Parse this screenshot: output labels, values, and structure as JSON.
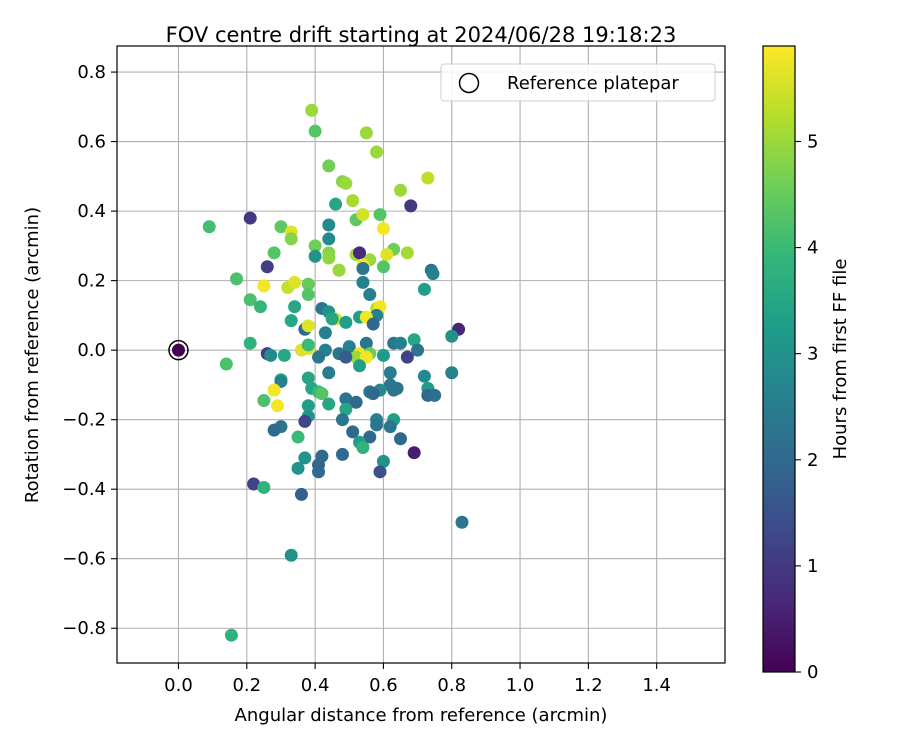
{
  "chart_data": {
    "type": "scatter",
    "title": "FOV centre drift starting at 2024/06/28 19:18:23",
    "xlabel": "Angular distance from reference (arcmin)",
    "ylabel": "Rotation from reference (arcmin)",
    "xlim": [
      -0.18,
      1.6
    ],
    "ylim": [
      -0.9,
      0.875
    ],
    "xticks": [
      0.0,
      0.2,
      0.4,
      0.6,
      0.8,
      1.0,
      1.2,
      1.4
    ],
    "xtick_labels": [
      "0.0",
      "0.2",
      "0.4",
      "0.6",
      "0.8",
      "1.0",
      "1.2",
      "1.4"
    ],
    "yticks": [
      0.8,
      0.6,
      0.4,
      0.2,
      0.0,
      -0.2,
      -0.4,
      -0.6,
      -0.8
    ],
    "ytick_labels": [
      "0.8",
      "0.6",
      "0.4",
      "0.2",
      "0.0",
      "−0.2",
      "−0.4",
      "−0.6",
      "−0.8"
    ],
    "grid": true,
    "legend": {
      "label": "Reference platepar",
      "placement": "top-right"
    },
    "reference_point": {
      "x": 0.0,
      "y": 0.0,
      "c": 0.0
    },
    "colorbar": {
      "label": "Hours from first FF file",
      "range": [
        0,
        5.9
      ],
      "ticks": [
        0,
        1,
        2,
        3,
        4,
        5
      ],
      "tick_labels": [
        "0",
        "1",
        "2",
        "3",
        "4",
        "5"
      ],
      "colormap": "viridis"
    },
    "colors": {
      "grid": "#b0b0b0",
      "viridis": [
        "#440154",
        "#482878",
        "#3e4989",
        "#31688e",
        "#26828e",
        "#1f9e89",
        "#35b779",
        "#6ece58",
        "#b5de2b",
        "#fde725"
      ]
    },
    "points": [
      {
        "x": 0.39,
        "y": 0.69,
        "c": 5.0
      },
      {
        "x": 0.4,
        "y": 0.63,
        "c": 4.3
      },
      {
        "x": 0.55,
        "y": 0.625,
        "c": 5.0
      },
      {
        "x": 0.58,
        "y": 0.57,
        "c": 5.0
      },
      {
        "x": 0.44,
        "y": 0.53,
        "c": 4.6
      },
      {
        "x": 0.73,
        "y": 0.495,
        "c": 5.3
      },
      {
        "x": 0.48,
        "y": 0.485,
        "c": 4.8
      },
      {
        "x": 0.49,
        "y": 0.48,
        "c": 5.0
      },
      {
        "x": 0.65,
        "y": 0.46,
        "c": 5.0
      },
      {
        "x": 0.51,
        "y": 0.43,
        "c": 5.1
      },
      {
        "x": 0.46,
        "y": 0.42,
        "c": 3.5
      },
      {
        "x": 0.68,
        "y": 0.415,
        "c": 1.0
      },
      {
        "x": 0.21,
        "y": 0.38,
        "c": 1.0
      },
      {
        "x": 0.52,
        "y": 0.375,
        "c": 4.4
      },
      {
        "x": 0.54,
        "y": 0.39,
        "c": 5.5
      },
      {
        "x": 0.59,
        "y": 0.39,
        "c": 4.3
      },
      {
        "x": 0.09,
        "y": 0.355,
        "c": 4.1
      },
      {
        "x": 0.3,
        "y": 0.355,
        "c": 4.4
      },
      {
        "x": 0.44,
        "y": 0.36,
        "c": 2.8
      },
      {
        "x": 0.33,
        "y": 0.34,
        "c": 5.6
      },
      {
        "x": 0.33,
        "y": 0.32,
        "c": 4.8
      },
      {
        "x": 0.6,
        "y": 0.35,
        "c": 5.8
      },
      {
        "x": 0.44,
        "y": 0.32,
        "c": 2.8
      },
      {
        "x": 0.4,
        "y": 0.3,
        "c": 4.6
      },
      {
        "x": 0.63,
        "y": 0.29,
        "c": 4.6
      },
      {
        "x": 0.28,
        "y": 0.28,
        "c": 4.3
      },
      {
        "x": 0.44,
        "y": 0.28,
        "c": 4.8
      },
      {
        "x": 0.4,
        "y": 0.27,
        "c": 3.0
      },
      {
        "x": 0.52,
        "y": 0.275,
        "c": 5.0
      },
      {
        "x": 0.56,
        "y": 0.26,
        "c": 5.0
      },
      {
        "x": 0.61,
        "y": 0.275,
        "c": 5.6
      },
      {
        "x": 0.67,
        "y": 0.28,
        "c": 5.1
      },
      {
        "x": 0.53,
        "y": 0.28,
        "c": 0.7
      },
      {
        "x": 0.54,
        "y": 0.245,
        "c": 5.8
      },
      {
        "x": 0.44,
        "y": 0.265,
        "c": 4.9
      },
      {
        "x": 0.26,
        "y": 0.24,
        "c": 1.1
      },
      {
        "x": 0.54,
        "y": 0.235,
        "c": 2.3
      },
      {
        "x": 0.6,
        "y": 0.24,
        "c": 4.3
      },
      {
        "x": 0.47,
        "y": 0.23,
        "c": 4.3
      },
      {
        "x": 0.47,
        "y": 0.23,
        "c": 5.0
      },
      {
        "x": 0.74,
        "y": 0.23,
        "c": 2.3
      },
      {
        "x": 0.745,
        "y": 0.22,
        "c": 2.6
      },
      {
        "x": 0.17,
        "y": 0.205,
        "c": 4.2
      },
      {
        "x": 0.25,
        "y": 0.185,
        "c": 5.8
      },
      {
        "x": 0.32,
        "y": 0.18,
        "c": 5.4
      },
      {
        "x": 0.34,
        "y": 0.195,
        "c": 5.6
      },
      {
        "x": 0.38,
        "y": 0.19,
        "c": 4.5
      },
      {
        "x": 0.54,
        "y": 0.195,
        "c": 2.6
      },
      {
        "x": 0.72,
        "y": 0.175,
        "c": 3.3
      },
      {
        "x": 0.38,
        "y": 0.16,
        "c": 4.3
      },
      {
        "x": 0.56,
        "y": 0.16,
        "c": 2.6
      },
      {
        "x": 0.21,
        "y": 0.145,
        "c": 4.2
      },
      {
        "x": 0.24,
        "y": 0.125,
        "c": 3.9
      },
      {
        "x": 0.34,
        "y": 0.125,
        "c": 3.5
      },
      {
        "x": 0.42,
        "y": 0.12,
        "c": 2.3
      },
      {
        "x": 0.44,
        "y": 0.11,
        "c": 3.0
      },
      {
        "x": 0.58,
        "y": 0.12,
        "c": 5.3
      },
      {
        "x": 0.59,
        "y": 0.125,
        "c": 5.8
      },
      {
        "x": 0.58,
        "y": 0.1,
        "c": 2.6
      },
      {
        "x": 0.53,
        "y": 0.095,
        "c": 3.3
      },
      {
        "x": 0.55,
        "y": 0.095,
        "c": 5.8
      },
      {
        "x": 0.46,
        "y": 0.09,
        "c": 5.6
      },
      {
        "x": 0.33,
        "y": 0.085,
        "c": 3.5
      },
      {
        "x": 0.49,
        "y": 0.08,
        "c": 3.3
      },
      {
        "x": 0.45,
        "y": 0.09,
        "c": 3.5
      },
      {
        "x": 0.57,
        "y": 0.075,
        "c": 2.0
      },
      {
        "x": 0.37,
        "y": 0.06,
        "c": 2.0
      },
      {
        "x": 0.38,
        "y": 0.07,
        "c": 5.6
      },
      {
        "x": 0.43,
        "y": 0.05,
        "c": 2.6
      },
      {
        "x": 0.82,
        "y": 0.06,
        "c": 0.6
      },
      {
        "x": 0.69,
        "y": 0.03,
        "c": 3.5
      },
      {
        "x": 0.8,
        "y": 0.04,
        "c": 3.0
      },
      {
        "x": 0.21,
        "y": 0.02,
        "c": 3.8
      },
      {
        "x": 0.5,
        "y": 0.01,
        "c": 2.6
      },
      {
        "x": 0.55,
        "y": 0.02,
        "c": 2.3
      },
      {
        "x": 0.63,
        "y": 0.02,
        "c": 2.3
      },
      {
        "x": 0.65,
        "y": 0.02,
        "c": 2.6
      },
      {
        "x": 0.36,
        "y": 0.0,
        "c": 5.6
      },
      {
        "x": 0.38,
        "y": 0.005,
        "c": 5.6
      },
      {
        "x": 0.38,
        "y": 0.015,
        "c": 4.0
      },
      {
        "x": 0.43,
        "y": 0.0,
        "c": 2.6
      },
      {
        "x": 0.47,
        "y": -0.01,
        "c": 2.3
      },
      {
        "x": 0.53,
        "y": -0.01,
        "c": 5.8
      },
      {
        "x": 0.56,
        "y": -0.01,
        "c": 4.5
      },
      {
        "x": 0.52,
        "y": -0.02,
        "c": 5.0
      },
      {
        "x": 0.55,
        "y": -0.02,
        "c": 5.8
      },
      {
        "x": 0.26,
        "y": -0.01,
        "c": 1.1
      },
      {
        "x": 0.27,
        "y": -0.015,
        "c": 2.8
      },
      {
        "x": 0.31,
        "y": -0.015,
        "c": 3.5
      },
      {
        "x": 0.41,
        "y": -0.02,
        "c": 2.3
      },
      {
        "x": 0.49,
        "y": -0.02,
        "c": 1.7
      },
      {
        "x": 0.67,
        "y": -0.02,
        "c": 1.2
      },
      {
        "x": 0.7,
        "y": 0.0,
        "c": 2.3
      },
      {
        "x": 0.6,
        "y": -0.015,
        "c": 3.2
      },
      {
        "x": 0.53,
        "y": -0.045,
        "c": 3.3
      },
      {
        "x": 0.14,
        "y": -0.04,
        "c": 4.2
      },
      {
        "x": 0.44,
        "y": -0.065,
        "c": 2.5
      },
      {
        "x": 0.62,
        "y": -0.065,
        "c": 2.5
      },
      {
        "x": 0.8,
        "y": -0.065,
        "c": 2.6
      },
      {
        "x": 0.72,
        "y": -0.075,
        "c": 2.8
      },
      {
        "x": 0.38,
        "y": -0.08,
        "c": 3.5
      },
      {
        "x": 0.3,
        "y": -0.085,
        "c": 3.5
      },
      {
        "x": 0.3,
        "y": -0.09,
        "c": 2.6
      },
      {
        "x": 0.62,
        "y": -0.1,
        "c": 2.3
      },
      {
        "x": 0.64,
        "y": -0.11,
        "c": 2.3
      },
      {
        "x": 0.63,
        "y": -0.115,
        "c": 2.3
      },
      {
        "x": 0.59,
        "y": -0.115,
        "c": 2.8
      },
      {
        "x": 0.56,
        "y": -0.12,
        "c": 2.3
      },
      {
        "x": 0.28,
        "y": -0.115,
        "c": 5.8
      },
      {
        "x": 0.39,
        "y": -0.11,
        "c": 3.5
      },
      {
        "x": 0.41,
        "y": -0.12,
        "c": 4.0
      },
      {
        "x": 0.42,
        "y": -0.125,
        "c": 4.3
      },
      {
        "x": 0.57,
        "y": -0.125,
        "c": 2.0
      },
      {
        "x": 0.73,
        "y": -0.11,
        "c": 3.2
      },
      {
        "x": 0.73,
        "y": -0.13,
        "c": 2.0
      },
      {
        "x": 0.75,
        "y": -0.13,
        "c": 2.2
      },
      {
        "x": 0.25,
        "y": -0.145,
        "c": 4.2
      },
      {
        "x": 0.49,
        "y": -0.14,
        "c": 2.3
      },
      {
        "x": 0.52,
        "y": -0.15,
        "c": 2.0
      },
      {
        "x": 0.29,
        "y": -0.16,
        "c": 5.8
      },
      {
        "x": 0.38,
        "y": -0.16,
        "c": 3.3
      },
      {
        "x": 0.44,
        "y": -0.155,
        "c": 3.5
      },
      {
        "x": 0.49,
        "y": -0.17,
        "c": 3.5
      },
      {
        "x": 0.38,
        "y": -0.19,
        "c": 3.0
      },
      {
        "x": 0.37,
        "y": -0.205,
        "c": 1.3
      },
      {
        "x": 0.48,
        "y": -0.2,
        "c": 2.3
      },
      {
        "x": 0.58,
        "y": -0.2,
        "c": 2.6
      },
      {
        "x": 0.63,
        "y": -0.2,
        "c": 3.3
      },
      {
        "x": 0.58,
        "y": -0.215,
        "c": 2.3
      },
      {
        "x": 0.62,
        "y": -0.22,
        "c": 2.3
      },
      {
        "x": 0.3,
        "y": -0.22,
        "c": 2.3
      },
      {
        "x": 0.28,
        "y": -0.23,
        "c": 2.0
      },
      {
        "x": 0.51,
        "y": -0.235,
        "c": 2.0
      },
      {
        "x": 0.35,
        "y": -0.25,
        "c": 4.0
      },
      {
        "x": 0.56,
        "y": -0.25,
        "c": 2.0
      },
      {
        "x": 0.65,
        "y": -0.255,
        "c": 2.0
      },
      {
        "x": 0.53,
        "y": -0.265,
        "c": 3.3
      },
      {
        "x": 0.54,
        "y": -0.28,
        "c": 3.8
      },
      {
        "x": 0.48,
        "y": -0.3,
        "c": 2.0
      },
      {
        "x": 0.42,
        "y": -0.305,
        "c": 2.0
      },
      {
        "x": 0.37,
        "y": -0.31,
        "c": 3.0
      },
      {
        "x": 0.69,
        "y": -0.295,
        "c": 0.5
      },
      {
        "x": 0.6,
        "y": -0.32,
        "c": 3.0
      },
      {
        "x": 0.41,
        "y": -0.33,
        "c": 2.0
      },
      {
        "x": 0.35,
        "y": -0.34,
        "c": 3.0
      },
      {
        "x": 0.41,
        "y": -0.35,
        "c": 2.0
      },
      {
        "x": 0.59,
        "y": -0.35,
        "c": 1.5
      },
      {
        "x": 0.22,
        "y": -0.385,
        "c": 1.2
      },
      {
        "x": 0.25,
        "y": -0.395,
        "c": 3.8
      },
      {
        "x": 0.36,
        "y": -0.415,
        "c": 1.8
      },
      {
        "x": 0.83,
        "y": -0.495,
        "c": 2.3
      },
      {
        "x": 0.33,
        "y": -0.59,
        "c": 3.0
      },
      {
        "x": 0.155,
        "y": -0.82,
        "c": 3.8
      }
    ]
  }
}
